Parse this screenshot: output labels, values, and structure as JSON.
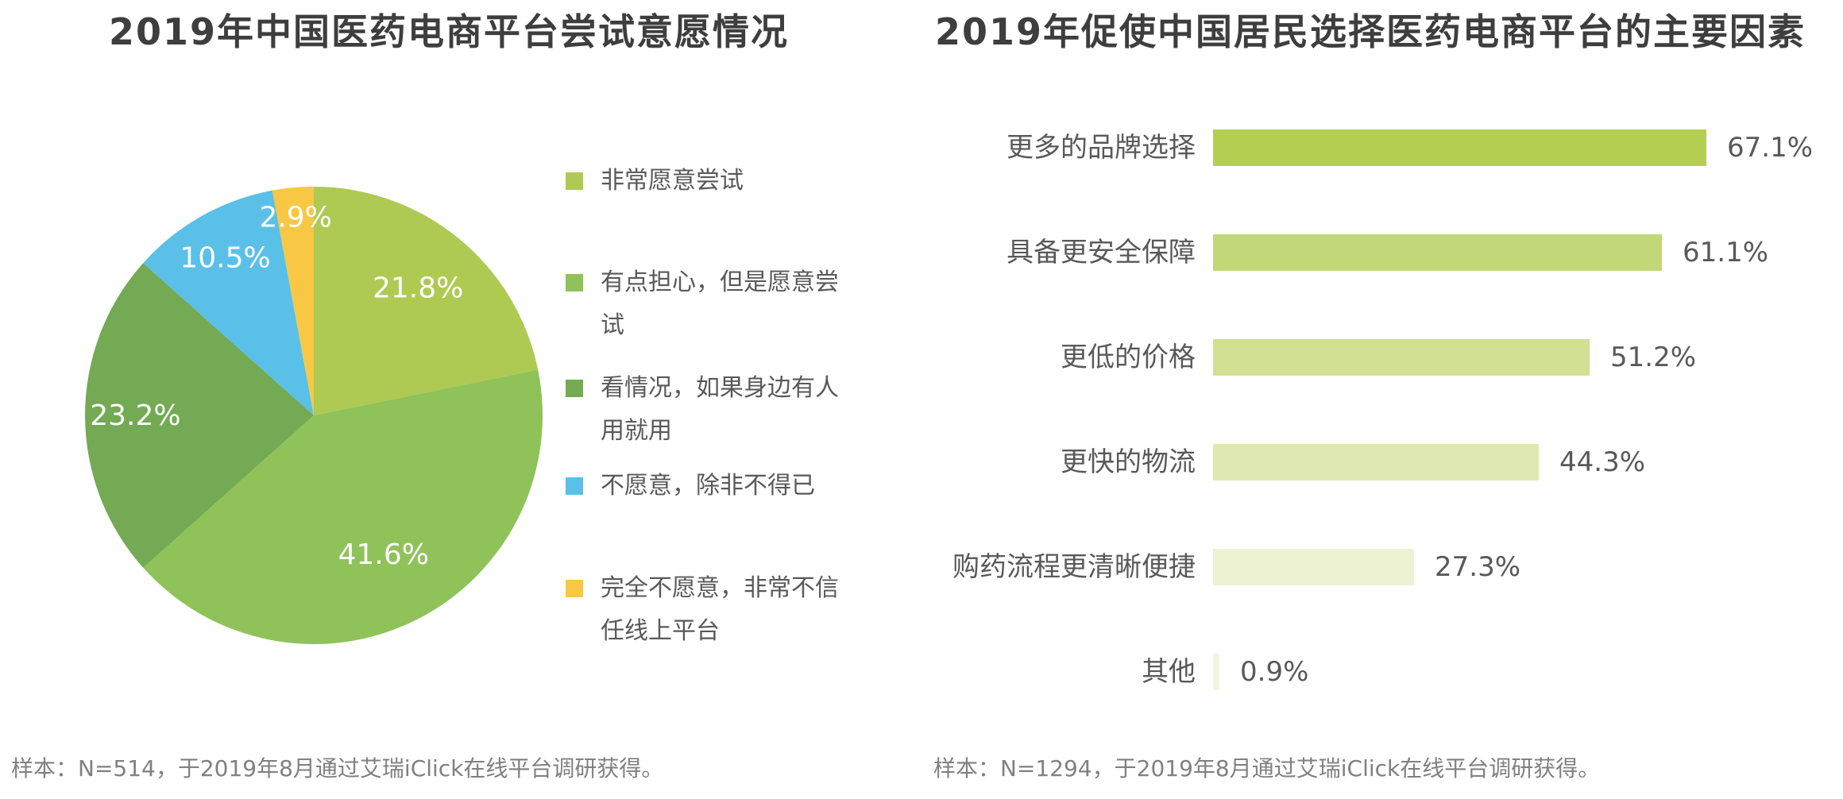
{
  "chart_data": [
    {
      "type": "pie",
      "title": "2019年中国医药电商平台尝试意愿情况",
      "categories": [
        "非常愿意尝试",
        "有点担心，但是愿意尝试",
        "看情况，如果身边有人用就用",
        "不愿意，除非不得已",
        "完全不愿意，非常不信任线上平台"
      ],
      "values": [
        21.8,
        41.6,
        23.2,
        10.5,
        2.9
      ],
      "value_labels": [
        "21.8%",
        "41.6%",
        "23.2%",
        "10.5%",
        "2.9%"
      ],
      "colors": [
        "#aeca52",
        "#90c25a",
        "#73aa53",
        "#5ac0e8",
        "#f8c845"
      ],
      "start_angle_deg": 0,
      "direction": "clockwise",
      "legend_position": "right",
      "data_label_color": "#ffffff",
      "note": "样本：N=514，于2019年8月通过艾瑞iClick在线平台调研获得。"
    },
    {
      "type": "bar",
      "orientation": "horizontal",
      "title": "2019年促使中国居民选择医药电商平台的主要因素",
      "categories": [
        "更多的品牌选择",
        "具备更安全保障",
        "更低的价格",
        "更快的物流",
        "购药流程更清晰便捷",
        "其他"
      ],
      "values": [
        67.1,
        61.1,
        51.2,
        44.3,
        27.3,
        0.9
      ],
      "value_labels": [
        "67.1%",
        "61.1%",
        "51.2%",
        "44.3%",
        "27.3%",
        "0.9%"
      ],
      "colors": [
        "#b5cf53",
        "#c2d778",
        "#d2e093",
        "#dfe8b2",
        "#edf2d2",
        "#f1f4e0"
      ],
      "xlim": [
        0,
        100
      ],
      "grid": false,
      "axis": "none",
      "data_labels": "outside-end",
      "note": "样本：N=1294，于2019年8月通过艾瑞iClick在线平台调研获得。"
    }
  ]
}
